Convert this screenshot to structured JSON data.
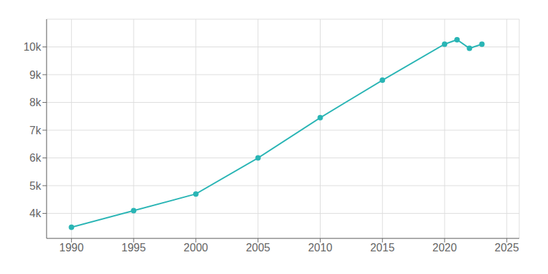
{
  "chart_data": {
    "type": "line",
    "x": [
      1990,
      1995,
      2000,
      2005,
      2010,
      2015,
      2020,
      2021,
      2022,
      2023
    ],
    "values": [
      3500,
      4100,
      4700,
      6000,
      7450,
      8800,
      10100,
      10260,
      9950,
      10100
    ],
    "color": "#2ab5b5",
    "marker": "circle",
    "xlim": [
      1988,
      2026
    ],
    "ylim": [
      3100,
      11000
    ],
    "xticks": [
      1990,
      1995,
      2000,
      2005,
      2010,
      2015,
      2020,
      2025
    ],
    "yticks": [
      {
        "value": 4000,
        "label": "4k"
      },
      {
        "value": 5000,
        "label": "5k"
      },
      {
        "value": 6000,
        "label": "6k"
      },
      {
        "value": 7000,
        "label": "7k"
      },
      {
        "value": 8000,
        "label": "8k"
      },
      {
        "value": 9000,
        "label": "9k"
      },
      {
        "value": 10000,
        "label": "10k"
      }
    ],
    "grid": true
  }
}
